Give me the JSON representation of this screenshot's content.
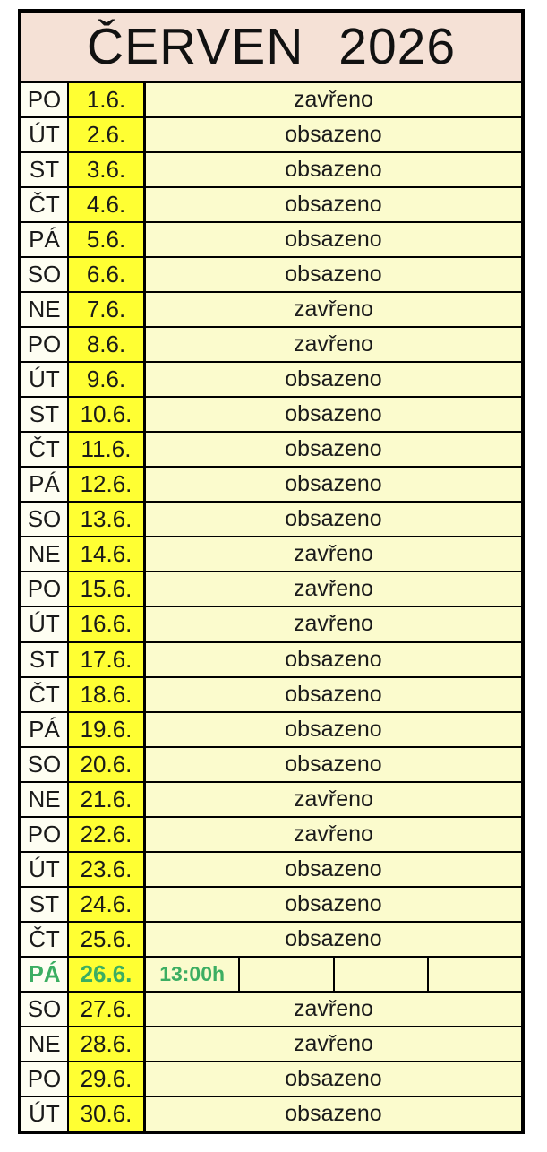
{
  "title": "ČERVEN 2026",
  "colors": {
    "header_bg": "#F5E1D6",
    "date_bg": "#FFFF33",
    "status_bg": "#FBFBCD",
    "day_bg": "#FEFEF2",
    "border": "#000000",
    "text": "#1A1A1A",
    "highlight_green": "#3CAE62"
  },
  "status_values": {
    "closed": "zavřeno",
    "occupied": "obsazeno"
  },
  "rows": [
    {
      "day": "PO",
      "date": "1.6.",
      "status": "zavřeno"
    },
    {
      "day": "ÚT",
      "date": "2.6.",
      "status": "obsazeno"
    },
    {
      "day": "ST",
      "date": "3.6.",
      "status": "obsazeno"
    },
    {
      "day": "ČT",
      "date": "4.6.",
      "status": "obsazeno"
    },
    {
      "day": "PÁ",
      "date": "5.6.",
      "status": "obsazeno"
    },
    {
      "day": "SO",
      "date": "6.6.",
      "status": "obsazeno"
    },
    {
      "day": "NE",
      "date": "7.6.",
      "status": "zavřeno"
    },
    {
      "day": "PO",
      "date": "8.6.",
      "status": "zavřeno"
    },
    {
      "day": "ÚT",
      "date": "9.6.",
      "status": "obsazeno"
    },
    {
      "day": "ST",
      "date": "10.6.",
      "status": "obsazeno"
    },
    {
      "day": "ČT",
      "date": "11.6.",
      "status": "obsazeno"
    },
    {
      "day": "PÁ",
      "date": "12.6.",
      "status": "obsazeno"
    },
    {
      "day": "SO",
      "date": "13.6.",
      "status": "obsazeno"
    },
    {
      "day": "NE",
      "date": "14.6.",
      "status": "zavřeno"
    },
    {
      "day": "PO",
      "date": "15.6.",
      "status": "zavřeno"
    },
    {
      "day": "ÚT",
      "date": "16.6.",
      "status": "zavřeno"
    },
    {
      "day": "ST",
      "date": "17.6.",
      "status": "obsazeno"
    },
    {
      "day": "ČT",
      "date": "18.6.",
      "status": "obsazeno"
    },
    {
      "day": "PÁ",
      "date": "19.6.",
      "status": "obsazeno"
    },
    {
      "day": "SO",
      "date": "20.6.",
      "status": "obsazeno"
    },
    {
      "day": "NE",
      "date": "21.6.",
      "status": "zavřeno"
    },
    {
      "day": "PO",
      "date": "22.6.",
      "status": "zavřeno"
    },
    {
      "day": "ÚT",
      "date": "23.6.",
      "status": "obsazeno"
    },
    {
      "day": "ST",
      "date": "24.6.",
      "status": "obsazeno"
    },
    {
      "day": "ČT",
      "date": "25.6.",
      "status": "obsazeno"
    },
    {
      "day": "PÁ",
      "date": "26.6.",
      "highlight": true,
      "slots": [
        "13:00h",
        "",
        "",
        ""
      ]
    },
    {
      "day": "SO",
      "date": "27.6.",
      "status": "zavřeno"
    },
    {
      "day": "NE",
      "date": "28.6.",
      "status": "zavřeno"
    },
    {
      "day": "PO",
      "date": "29.6.",
      "status": "obsazeno"
    },
    {
      "day": "ÚT",
      "date": "30.6.",
      "status": "obsazeno"
    }
  ]
}
